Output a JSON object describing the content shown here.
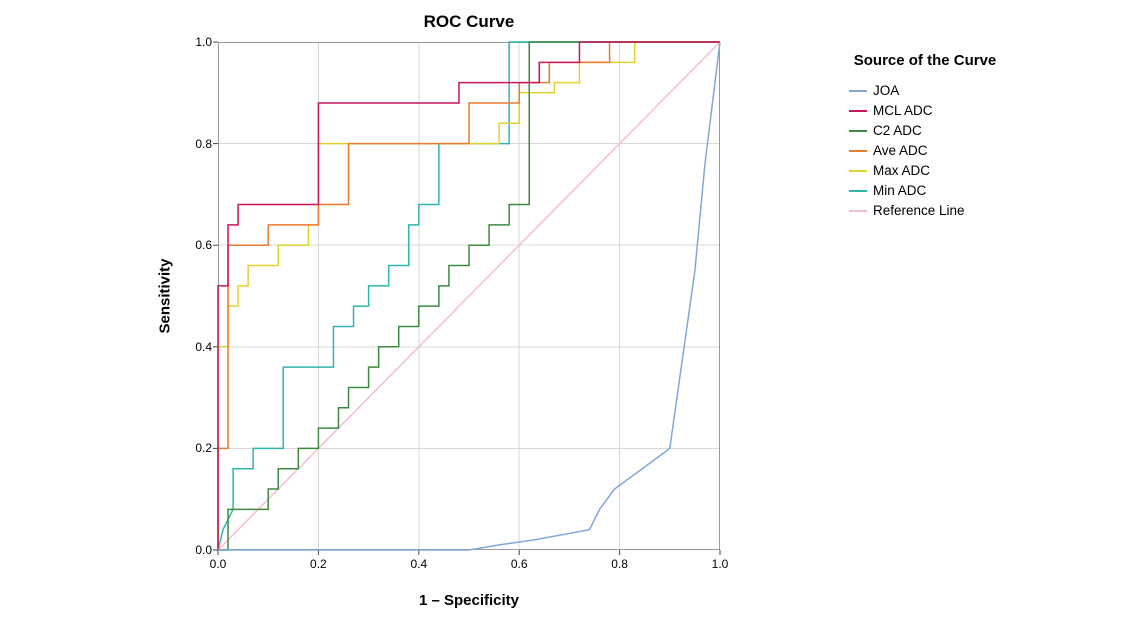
{
  "chart_data": {
    "type": "line",
    "subtype": "roc-step-curves",
    "title": "ROC Curve",
    "xlabel": "1 – Specificity",
    "ylabel": "Sensitivity",
    "xlim": [
      0,
      1
    ],
    "ylim": [
      0,
      1
    ],
    "xticks": [
      "0.0",
      "0.2",
      "0.4",
      "0.6",
      "0.8",
      "1.0"
    ],
    "yticks": [
      "0.0",
      "0.2",
      "0.4",
      "0.6",
      "0.8",
      "1.0"
    ],
    "grid": true,
    "legend_title": "Source of the Curve",
    "legend_position": "right",
    "colors": {
      "grid": "#d7d7d7",
      "frame": "#9a9a9a",
      "tick": "#444444",
      "background": "#ffffff"
    },
    "series": [
      {
        "name": "JOA",
        "color": "#7fa8d9",
        "points": [
          [
            0,
            0
          ],
          [
            0.5,
            0
          ],
          [
            0.56,
            0.01
          ],
          [
            0.63,
            0.02
          ],
          [
            0.74,
            0.04
          ],
          [
            0.76,
            0.08
          ],
          [
            0.79,
            0.12
          ],
          [
            0.9,
            0.2
          ],
          [
            0.95,
            0.55
          ],
          [
            0.97,
            0.76
          ],
          [
            1,
            1
          ]
        ]
      },
      {
        "name": "MCL ADC",
        "color": "#c9155d",
        "points": [
          [
            0,
            0
          ],
          [
            0,
            0.52
          ],
          [
            0.02,
            0.52
          ],
          [
            0.02,
            0.64
          ],
          [
            0.04,
            0.64
          ],
          [
            0.04,
            0.68
          ],
          [
            0.2,
            0.68
          ],
          [
            0.2,
            0.88
          ],
          [
            0.48,
            0.88
          ],
          [
            0.48,
            0.92
          ],
          [
            0.64,
            0.92
          ],
          [
            0.64,
            0.96
          ],
          [
            0.72,
            0.96
          ],
          [
            0.72,
            1
          ],
          [
            1,
            1
          ]
        ]
      },
      {
        "name": "C2 ADC",
        "color": "#3c8a3f",
        "points": [
          [
            0,
            0
          ],
          [
            0.02,
            0
          ],
          [
            0.02,
            0.08
          ],
          [
            0.1,
            0.08
          ],
          [
            0.1,
            0.12
          ],
          [
            0.12,
            0.12
          ],
          [
            0.12,
            0.16
          ],
          [
            0.16,
            0.16
          ],
          [
            0.16,
            0.2
          ],
          [
            0.2,
            0.2
          ],
          [
            0.2,
            0.24
          ],
          [
            0.24,
            0.24
          ],
          [
            0.24,
            0.28
          ],
          [
            0.26,
            0.28
          ],
          [
            0.26,
            0.32
          ],
          [
            0.3,
            0.32
          ],
          [
            0.3,
            0.36
          ],
          [
            0.32,
            0.36
          ],
          [
            0.32,
            0.4
          ],
          [
            0.36,
            0.4
          ],
          [
            0.36,
            0.44
          ],
          [
            0.4,
            0.44
          ],
          [
            0.4,
            0.48
          ],
          [
            0.44,
            0.48
          ],
          [
            0.44,
            0.52
          ],
          [
            0.46,
            0.52
          ],
          [
            0.46,
            0.56
          ],
          [
            0.5,
            0.56
          ],
          [
            0.5,
            0.6
          ],
          [
            0.54,
            0.6
          ],
          [
            0.54,
            0.64
          ],
          [
            0.58,
            0.64
          ],
          [
            0.58,
            0.68
          ],
          [
            0.62,
            0.68
          ],
          [
            0.62,
            1
          ],
          [
            1,
            1
          ]
        ]
      },
      {
        "name": "Ave ADC",
        "color": "#e97b2f",
        "points": [
          [
            0,
            0
          ],
          [
            0,
            0.2
          ],
          [
            0.02,
            0.2
          ],
          [
            0.02,
            0.6
          ],
          [
            0.1,
            0.6
          ],
          [
            0.1,
            0.64
          ],
          [
            0.2,
            0.64
          ],
          [
            0.2,
            0.68
          ],
          [
            0.26,
            0.68
          ],
          [
            0.26,
            0.8
          ],
          [
            0.5,
            0.8
          ],
          [
            0.5,
            0.88
          ],
          [
            0.6,
            0.88
          ],
          [
            0.6,
            0.92
          ],
          [
            0.66,
            0.92
          ],
          [
            0.66,
            0.96
          ],
          [
            0.78,
            0.96
          ],
          [
            0.78,
            1
          ],
          [
            1,
            1
          ]
        ]
      },
      {
        "name": "Max ADC",
        "color": "#e2d22e",
        "points": [
          [
            0,
            0
          ],
          [
            0,
            0.4
          ],
          [
            0.02,
            0.4
          ],
          [
            0.02,
            0.48
          ],
          [
            0.04,
            0.48
          ],
          [
            0.04,
            0.52
          ],
          [
            0.06,
            0.52
          ],
          [
            0.06,
            0.56
          ],
          [
            0.12,
            0.56
          ],
          [
            0.12,
            0.6
          ],
          [
            0.18,
            0.6
          ],
          [
            0.18,
            0.64
          ],
          [
            0.2,
            0.64
          ],
          [
            0.2,
            0.8
          ],
          [
            0.56,
            0.8
          ],
          [
            0.56,
            0.84
          ],
          [
            0.6,
            0.84
          ],
          [
            0.6,
            0.9
          ],
          [
            0.67,
            0.9
          ],
          [
            0.67,
            0.92
          ],
          [
            0.72,
            0.92
          ],
          [
            0.72,
            0.96
          ],
          [
            0.83,
            0.96
          ],
          [
            0.83,
            1
          ],
          [
            1,
            1
          ]
        ]
      },
      {
        "name": "Min ADC",
        "color": "#2eb6ad",
        "points": [
          [
            0,
            0
          ],
          [
            0.01,
            0.04
          ],
          [
            0.03,
            0.08
          ],
          [
            0.03,
            0.16
          ],
          [
            0.07,
            0.16
          ],
          [
            0.07,
            0.2
          ],
          [
            0.13,
            0.2
          ],
          [
            0.13,
            0.36
          ],
          [
            0.23,
            0.36
          ],
          [
            0.23,
            0.44
          ],
          [
            0.27,
            0.44
          ],
          [
            0.27,
            0.48
          ],
          [
            0.3,
            0.48
          ],
          [
            0.3,
            0.52
          ],
          [
            0.34,
            0.52
          ],
          [
            0.34,
            0.56
          ],
          [
            0.38,
            0.56
          ],
          [
            0.38,
            0.64
          ],
          [
            0.4,
            0.64
          ],
          [
            0.4,
            0.68
          ],
          [
            0.44,
            0.68
          ],
          [
            0.44,
            0.8
          ],
          [
            0.58,
            0.8
          ],
          [
            0.58,
            1
          ],
          [
            1,
            1
          ]
        ]
      },
      {
        "name": "Reference Line",
        "color": "#f7bcd1",
        "points": [
          [
            0,
            0
          ],
          [
            1,
            1
          ]
        ]
      }
    ]
  }
}
